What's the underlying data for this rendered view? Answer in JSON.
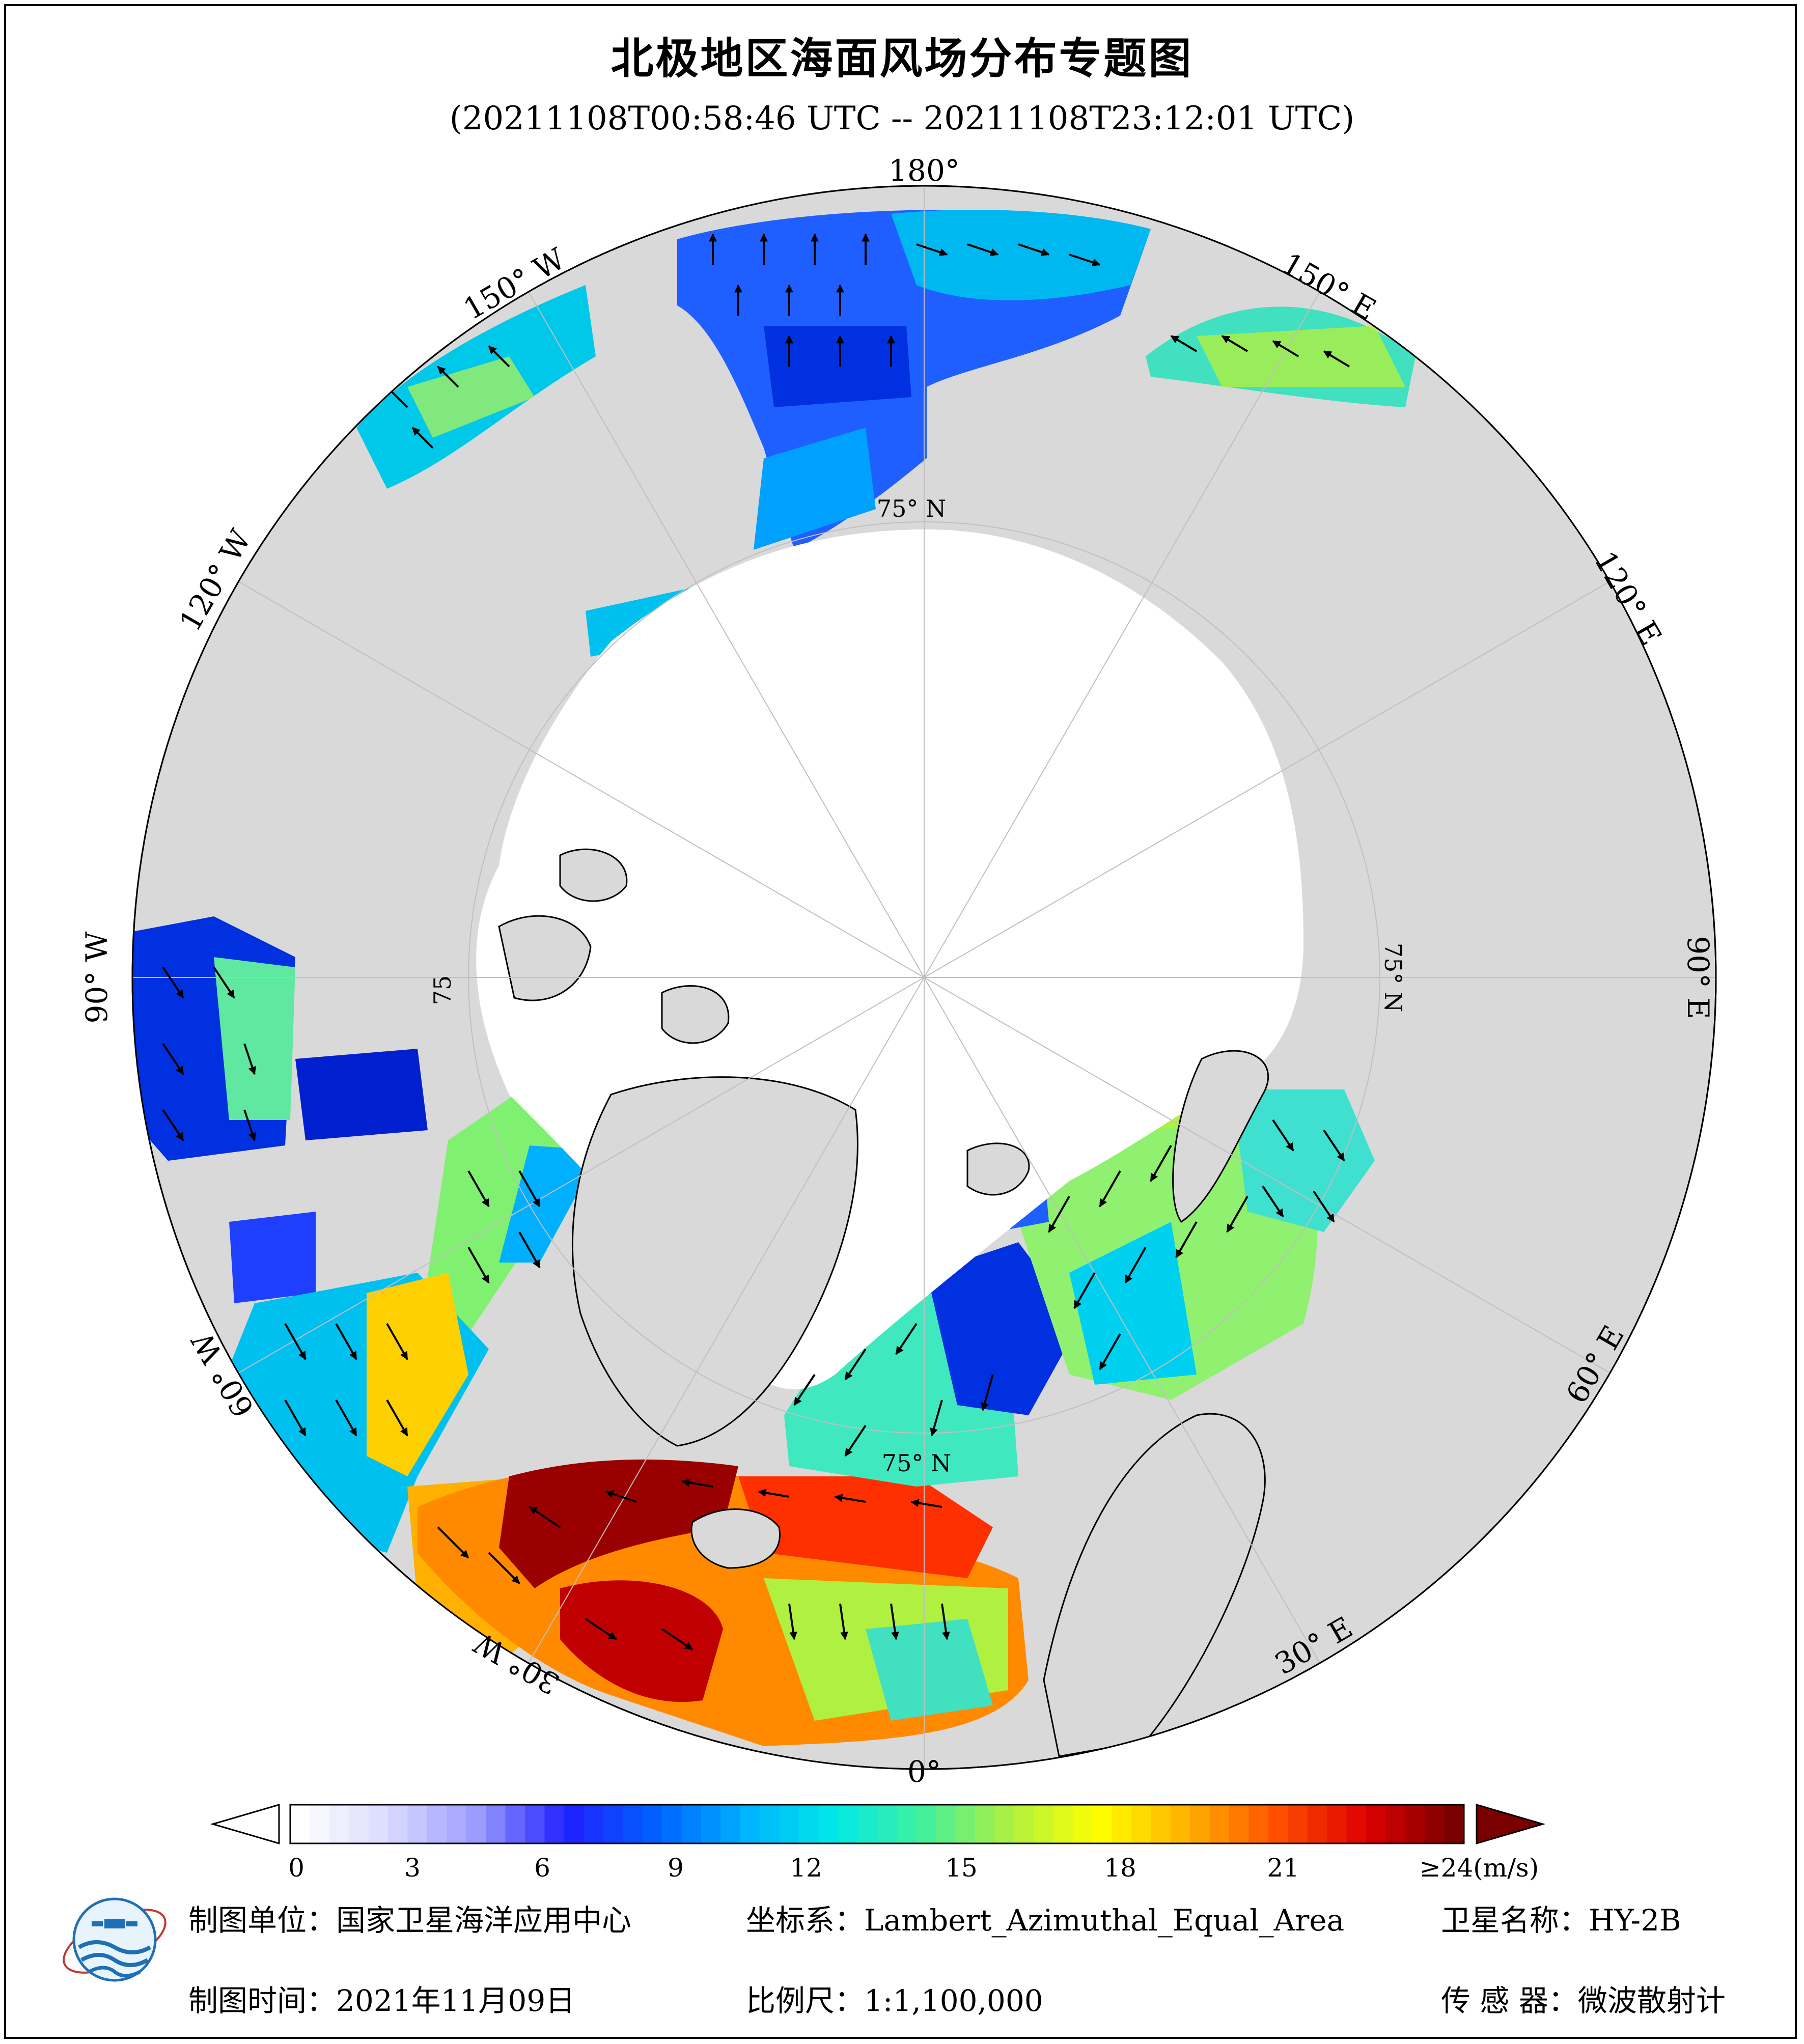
{
  "title": "北极地区海面风场分布专题图",
  "subtitle": "(20211108T00:58:46 UTC -- 20211108T23:12:01 UTC)",
  "longitude_labels": [
    "180°",
    "150° E",
    "120° E",
    "90° E",
    "60° E",
    "30° E",
    "0°",
    "30° W",
    "60° W",
    "90° W",
    "120° W",
    "150° W"
  ],
  "latitude_labels": [
    "75° N",
    "75° N",
    "75° N",
    "75"
  ],
  "colorbar": {
    "unit": "(m/s)",
    "ticks": [
      "0",
      "3",
      "6",
      "9",
      "12",
      "15",
      "18",
      "21",
      "≥24(m/s)"
    ],
    "tick_values": [
      0,
      3,
      6,
      9,
      12,
      15,
      18,
      21,
      24
    ],
    "min": 0,
    "max": 24,
    "colors": [
      "#ffffff",
      "#d9d9ff",
      "#9b9bff",
      "#1f1fff",
      "#0060ff",
      "#00b0ff",
      "#00e8e8",
      "#40f0a0",
      "#b0f040",
      "#ffff00",
      "#ffb000",
      "#ff5000",
      "#e00000",
      "#7a0000"
    ],
    "over_color": "#7a0000"
  },
  "colors": {
    "land": "#d9d9d9",
    "ice": "#ffffff",
    "coast": "#000000",
    "graticule": "#bfbfbf"
  },
  "footer": {
    "unit_label": "制图单位：",
    "unit_value": "国家卫星海洋应用中心",
    "crs_label": "坐标系：",
    "crs_value": "Lambert_Azimuthal_Equal_Area",
    "satellite_label": "卫星名称：",
    "satellite_value": "HY-2B",
    "date_label": "制图时间：",
    "date_value": "2021年11月09日",
    "scale_label": "比例尺：",
    "scale_value": "1:1,100,000",
    "sensor_label": "传 感 器：",
    "sensor_value": "微波散射计"
  },
  "logo_icon": "nsoas-logo-icon"
}
